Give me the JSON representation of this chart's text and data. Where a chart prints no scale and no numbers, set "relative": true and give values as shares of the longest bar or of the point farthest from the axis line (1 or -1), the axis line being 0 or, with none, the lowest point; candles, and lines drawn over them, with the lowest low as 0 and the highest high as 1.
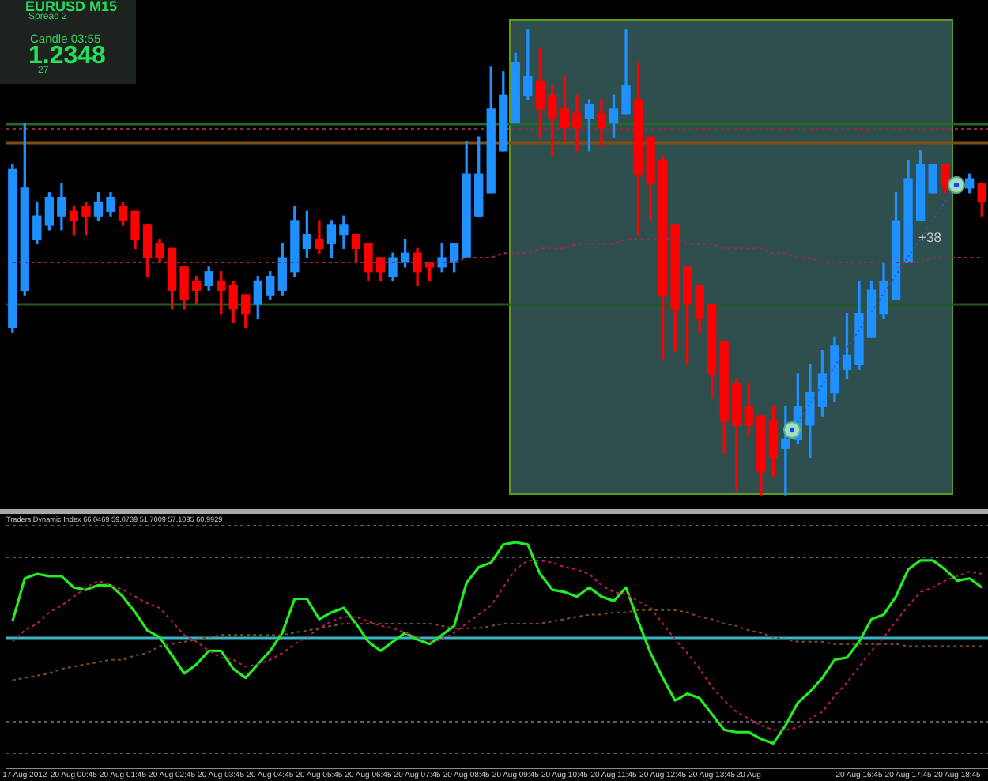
{
  "chart_data": [
    {
      "type": "candlestick",
      "title": "EURUSD M15",
      "annotations": [
        "Spread 2",
        "Candle 03:55",
        "1.2348",
        "27",
        "+38"
      ],
      "relative": true,
      "tick_labels": false,
      "categories": [
        null,
        "17 Aug 2012",
        null,
        null,
        null,
        "20 Aug 00:45",
        null,
        null,
        null,
        "20 Aug 01:45",
        null,
        null,
        null,
        "20 Aug 02:45",
        null,
        null,
        null,
        "20 Aug 03:45",
        null,
        null,
        null,
        "20 Aug 04:45",
        null,
        null,
        null,
        "20 Aug 05:45",
        null,
        null,
        null,
        "20 Aug 06:45",
        null,
        null,
        null,
        "20 Aug 07:45",
        null,
        null,
        null,
        "20 Aug 08:45",
        null,
        null,
        null,
        "20 Aug 09:45",
        null,
        null,
        null,
        "20 Aug 10:45",
        null,
        null,
        null,
        "20 Aug 11:45",
        null,
        null,
        null,
        "20 Aug 12:45",
        null,
        null,
        null,
        "20 Aug 13:45",
        null,
        null,
        "20 Aug",
        null,
        null,
        null,
        null,
        null,
        null,
        null,
        null,
        "20 Aug 16:45",
        null,
        null,
        null,
        "20 Aug 17:45",
        null,
        null,
        null,
        "20 Aug 18:45",
        null,
        null
      ],
      "ohlc": [
        [
          0.36,
          0.71,
          0.35,
          0.7
        ],
        [
          0.44,
          0.8,
          0.43,
          0.66
        ],
        [
          0.55,
          0.63,
          0.54,
          0.6
        ],
        [
          0.58,
          0.65,
          0.57,
          0.64
        ],
        [
          0.6,
          0.67,
          0.57,
          0.64
        ],
        [
          0.61,
          0.62,
          0.56,
          0.59
        ],
        [
          0.62,
          0.63,
          0.56,
          0.6
        ],
        [
          0.6,
          0.65,
          0.59,
          0.63
        ],
        [
          0.61,
          0.65,
          0.6,
          0.64
        ],
        [
          0.62,
          0.63,
          0.58,
          0.59
        ],
        [
          0.61,
          0.61,
          0.53,
          0.55
        ],
        [
          0.58,
          0.58,
          0.47,
          0.51
        ],
        [
          0.54,
          0.55,
          0.5,
          0.51
        ],
        [
          0.53,
          0.53,
          0.4,
          0.44
        ],
        [
          0.49,
          0.49,
          0.4,
          0.42
        ],
        [
          0.46,
          0.47,
          0.41,
          0.44
        ],
        [
          0.45,
          0.49,
          0.44,
          0.48
        ],
        [
          0.46,
          0.48,
          0.39,
          0.44
        ],
        [
          0.45,
          0.46,
          0.37,
          0.4
        ],
        [
          0.43,
          0.43,
          0.36,
          0.39
        ],
        [
          0.41,
          0.47,
          0.38,
          0.46
        ],
        [
          0.43,
          0.48,
          0.42,
          0.47
        ],
        [
          0.44,
          0.54,
          0.43,
          0.51
        ],
        [
          0.48,
          0.62,
          0.47,
          0.59
        ],
        [
          0.53,
          0.61,
          0.51,
          0.56
        ],
        [
          0.55,
          0.59,
          0.52,
          0.53
        ],
        [
          0.54,
          0.59,
          0.51,
          0.58
        ],
        [
          0.56,
          0.6,
          0.53,
          0.58
        ],
        [
          0.56,
          0.56,
          0.5,
          0.53
        ],
        [
          0.54,
          0.54,
          0.46,
          0.48
        ],
        [
          0.51,
          0.51,
          0.46,
          0.48
        ],
        [
          0.47,
          0.52,
          0.46,
          0.51
        ],
        [
          0.5,
          0.55,
          0.49,
          0.52
        ],
        [
          0.52,
          0.53,
          0.45,
          0.48
        ],
        [
          0.5,
          0.5,
          0.46,
          0.49
        ],
        [
          0.49,
          0.54,
          0.48,
          0.51
        ],
        [
          0.5,
          0.54,
          0.48,
          0.54
        ],
        [
          0.51,
          0.76,
          0.51,
          0.69
        ],
        [
          0.6,
          0.77,
          0.6,
          0.69
        ],
        [
          0.65,
          0.92,
          0.65,
          0.83
        ],
        [
          0.74,
          0.91,
          0.74,
          0.86
        ],
        [
          0.8,
          0.95,
          0.8,
          0.93
        ],
        [
          0.86,
          1,
          0.85,
          0.9
        ],
        [
          0.89,
          0.96,
          0.77,
          0.83
        ],
        [
          0.86,
          0.88,
          0.73,
          0.81
        ],
        [
          0.83,
          0.9,
          0.76,
          0.79
        ],
        [
          0.82,
          0.86,
          0.74,
          0.79
        ],
        [
          0.81,
          0.85,
          0.74,
          0.84
        ],
        [
          0.82,
          0.85,
          0.75,
          0.79
        ],
        [
          0.8,
          0.86,
          0.77,
          0.83
        ],
        [
          0.82,
          1,
          0.82,
          0.88
        ],
        [
          0.85,
          0.93,
          0.56,
          0.69
        ],
        [
          0.77,
          0.77,
          0.59,
          0.67
        ],
        [
          0.72,
          0.73,
          0.29,
          0.43
        ],
        [
          0.58,
          0.58,
          0.31,
          0.4
        ],
        [
          0.49,
          0.49,
          0.28,
          0.41
        ],
        [
          0.45,
          0.45,
          0.35,
          0.38
        ],
        [
          0.41,
          0.41,
          0.21,
          0.26
        ],
        [
          0.33,
          0.33,
          0.09,
          0.16
        ],
        [
          0.24,
          0.25,
          0.01,
          0.15
        ],
        [
          0.19,
          0.24,
          0.13,
          0.15
        ],
        [
          0.17,
          0.17,
          0,
          0.05
        ],
        [
          0.16,
          0.19,
          0.04,
          0.08
        ],
        [
          0.1,
          0.19,
          0,
          0.12
        ],
        [
          0.12,
          0.26,
          0.11,
          0.19
        ],
        [
          0.15,
          0.28,
          0.08,
          0.22
        ],
        [
          0.19,
          0.31,
          0.17,
          0.26
        ],
        [
          0.22,
          0.34,
          0.2,
          0.32
        ],
        [
          0.27,
          0.39,
          0.25,
          0.3
        ],
        [
          0.28,
          0.46,
          0.27,
          0.39
        ],
        [
          0.34,
          0.46,
          0.34,
          0.44
        ],
        [
          0.39,
          0.5,
          0.38,
          0.46
        ],
        [
          0.42,
          0.65,
          0.42,
          0.59
        ],
        [
          0.5,
          0.72,
          0.5,
          0.68
        ],
        [
          0.59,
          0.74,
          0.59,
          0.71
        ],
        [
          0.65,
          0.71,
          0.65,
          0.71
        ],
        [
          0.71,
          0.71,
          0.65,
          0.66
        ],
        null,
        [
          0.66,
          0.69,
          0.65,
          0.68
        ],
        [
          0.67,
          0.67,
          0.6,
          0.63
        ]
      ],
      "colors": [
        "#1e90ff",
        "#1e90ff",
        "#1e90ff",
        "#1e90ff",
        "#1e90ff",
        "#ff0000",
        "#ff0000",
        "#1e90ff",
        "#1e90ff",
        "#ff0000",
        "#ff0000",
        "#ff0000",
        "#ff0000",
        "#ff0000",
        "#ff0000",
        "#ff0000",
        "#1e90ff",
        "#ff0000",
        "#ff0000",
        "#ff0000",
        "#1e90ff",
        "#1e90ff",
        "#1e90ff",
        "#1e90ff",
        "#1e90ff",
        "#ff0000",
        "#1e90ff",
        "#1e90ff",
        "#ff0000",
        "#ff0000",
        "#ff0000",
        "#1e90ff",
        "#1e90ff",
        "#ff0000",
        "#ff0000",
        "#1e90ff",
        "#1e90ff",
        "#1e90ff",
        "#1e90ff",
        "#1e90ff",
        "#1e90ff",
        "#1e90ff",
        "#1e90ff",
        "#ff0000",
        "#ff0000",
        "#ff0000",
        "#ff0000",
        "#1e90ff",
        "#ff0000",
        "#1e90ff",
        "#1e90ff",
        "#ff0000",
        "#ff0000",
        "#ff0000",
        "#ff0000",
        "#ff0000",
        "#ff0000",
        "#ff0000",
        "#ff0000",
        "#ff0000",
        "#ff0000",
        "#ff0000",
        "#ff0000",
        "#1e90ff",
        "#1e90ff",
        "#1e90ff",
        "#1e90ff",
        "#1e90ff",
        "#1e90ff",
        "#1e90ff",
        "#1e90ff",
        "#1e90ff",
        "#1e90ff",
        "#1e90ff",
        "#1e90ff",
        "#1e90ff",
        "#ff0000",
        "#1e90ff",
        "#1e90ff",
        "#ff0000"
      ],
      "series": [
        {
          "type": "line",
          "color": "#a3244e",
          "line_style": "dotted",
          "values": [
            0.5,
            0.5,
            0.5,
            0.5,
            0.5,
            0.5,
            0.5,
            0.5,
            0.5,
            0.5,
            0.5,
            0.5,
            0.5,
            0.5,
            0.5,
            0.5,
            0.5,
            0.5,
            0.5,
            0.5,
            0.5,
            0.5,
            0.5,
            0.5,
            0.5,
            0.5,
            0.5,
            0.5,
            0.5,
            0.5,
            0.5,
            0.5,
            0.5,
            0.5,
            0.5,
            0.5,
            0.5,
            0.51,
            0.51,
            0.51,
            0.52,
            0.52,
            0.52,
            0.53,
            0.53,
            0.53,
            0.54,
            0.54,
            0.54,
            0.54,
            0.55,
            0.55,
            0.55,
            0.55,
            0.55,
            0.54,
            0.54,
            0.54,
            0.53,
            0.53,
            0.53,
            0.53,
            0.52,
            0.52,
            0.51,
            0.51,
            0.5,
            0.5,
            0.5,
            0.5,
            0.5,
            0.5,
            0.5,
            0.5,
            0.5,
            0.51,
            0.51,
            0.51,
            0.51,
            0.51
          ]
        }
      ],
      "ref_lines": [
        {
          "axis": "y",
          "value": 0.8,
          "color": "#236b23",
          "line_style": "solid"
        },
        {
          "axis": "y",
          "value": 0.79,
          "color": "#8a2a48",
          "line_style": "dotted"
        },
        {
          "axis": "y",
          "value": 0.76,
          "color": "#7d4f16",
          "line_style": "solid"
        },
        {
          "axis": "y",
          "value": 0.41,
          "color": "#1f5a1f",
          "line_style": "solid"
        }
      ],
      "bands": [
        {
          "axis": "x",
          "from": "20 Aug 09:45",
          "to": "20 Aug 18:45",
          "color": "#2f4f4f"
        }
      ]
    },
    {
      "type": "line",
      "title": "Traders Dynamic Index 66.0469 59.0739 51.7009 57.1095 60.9929",
      "relative": true,
      "tick_labels": "x",
      "categories": [
        null,
        "17 Aug 2012",
        null,
        null,
        null,
        "20 Aug 00:45",
        null,
        null,
        null,
        "20 Aug 01:45",
        null,
        null,
        null,
        "20 Aug 02:45",
        null,
        null,
        null,
        "20 Aug 03:45",
        null,
        null,
        null,
        "20 Aug 04:45",
        null,
        null,
        null,
        "20 Aug 05:45",
        null,
        null,
        null,
        "20 Aug 06:45",
        null,
        null,
        null,
        "20 Aug 07:45",
        null,
        null,
        null,
        "20 Aug 08:45",
        null,
        null,
        null,
        "20 Aug 09:45",
        null,
        null,
        null,
        "20 Aug 10:45",
        null,
        null,
        null,
        "20 Aug 11:45",
        null,
        null,
        null,
        "20 Aug 12:45",
        null,
        null,
        null,
        "20 Aug 13:45",
        null,
        null,
        "20 Aug",
        null,
        null,
        null,
        null,
        null,
        null,
        null,
        null,
        "20 Aug 16:45",
        null,
        null,
        null,
        "20 Aug 17:45",
        null,
        null,
        null,
        "20 Aug 18:45",
        null,
        null
      ],
      "series": [
        {
          "color": "#7a5020",
          "line_style": "dotted",
          "values": [
            0.39,
            0.4,
            0.41,
            0.42,
            0.44,
            0.45,
            0.46,
            0.47,
            0.48,
            0.48,
            0.5,
            0.51,
            0.54,
            0.55,
            0.56,
            0.57,
            0.58,
            0.59,
            0.59,
            0.59,
            0.59,
            0.59,
            0.59,
            0.6,
            0.61,
            0.62,
            0.63,
            0.64,
            0.64,
            0.64,
            0.64,
            0.64,
            0.64,
            0.64,
            0.64,
            0.63,
            0.62,
            0.62,
            0.62,
            0.63,
            0.64,
            0.64,
            0.64,
            0.64,
            0.65,
            0.66,
            0.67,
            0.68,
            0.68,
            0.69,
            0.69,
            0.7,
            0.7,
            0.7,
            0.7,
            0.69,
            0.67,
            0.66,
            0.64,
            0.63,
            0.61,
            0.6,
            0.58,
            0.57,
            0.56,
            0.56,
            0.56,
            0.55,
            0.55,
            0.55,
            0.55,
            0.55,
            0.55,
            0.54,
            0.54,
            0.54,
            0.54,
            0.54,
            0.54,
            0.54
          ]
        },
        {
          "color": "#b4204e",
          "line_style": "dotted",
          "values": [
            0.56,
            0.61,
            0.64,
            0.69,
            0.72,
            0.76,
            0.8,
            0.83,
            0.81,
            0.79,
            0.76,
            0.73,
            0.71,
            0.65,
            0.59,
            0.56,
            0.52,
            0.49,
            0.48,
            0.45,
            0.46,
            0.48,
            0.51,
            0.55,
            0.58,
            0.62,
            0.65,
            0.67,
            0.67,
            0.65,
            0.63,
            0.62,
            0.6,
            0.58,
            0.56,
            0.57,
            0.6,
            0.64,
            0.68,
            0.72,
            0.8,
            0.88,
            0.92,
            0.92,
            0.91,
            0.89,
            0.88,
            0.86,
            0.81,
            0.78,
            0.77,
            0.74,
            0.71,
            0.64,
            0.57,
            0.51,
            0.44,
            0.36,
            0.3,
            0.25,
            0.22,
            0.19,
            0.17,
            0.17,
            0.18,
            0.22,
            0.25,
            0.32,
            0.38,
            0.45,
            0.52,
            0.58,
            0.65,
            0.72,
            0.78,
            0.8,
            0.83,
            0.85,
            0.87,
            0.86
          ]
        },
        {
          "color": "#22ee22",
          "line_style": "solid",
          "values": [
            0.65,
            0.84,
            0.86,
            0.85,
            0.85,
            0.8,
            0.79,
            0.81,
            0.81,
            0.76,
            0.69,
            0.61,
            0.58,
            0.5,
            0.42,
            0.46,
            0.52,
            0.52,
            0.44,
            0.4,
            0.46,
            0.52,
            0.6,
            0.75,
            0.75,
            0.66,
            0.69,
            0.71,
            0.64,
            0.56,
            0.52,
            0.56,
            0.6,
            0.57,
            0.55,
            0.59,
            0.63,
            0.82,
            0.89,
            0.91,
            0.99,
            1,
            0.99,
            0.86,
            0.79,
            0.78,
            0.76,
            0.8,
            0.76,
            0.74,
            0.8,
            0.65,
            0.51,
            0.4,
            0.3,
            0.33,
            0.31,
            0.24,
            0.17,
            0.16,
            0.16,
            0.13,
            0.11,
            0.19,
            0.29,
            0.34,
            0.4,
            0.48,
            0.49,
            0.56,
            0.66,
            0.68,
            0.76,
            0.88,
            0.92,
            0.92,
            0.88,
            0.83,
            0.84,
            0.8
          ]
        }
      ],
      "ref_lines": [
        {
          "axis": "y",
          "value": 1.08,
          "color": "#5c5c5c",
          "line_style": "dotted"
        },
        {
          "axis": "y",
          "value": 0.94,
          "color": "#5c5c5c",
          "line_style": "dotted"
        },
        {
          "axis": "y",
          "value": 0.58,
          "color": "#3cb4c4",
          "line_style": "solid"
        },
        {
          "axis": "y",
          "value": 0.21,
          "color": "#5c5c5c",
          "line_style": "dotted"
        },
        {
          "axis": "y",
          "value": 0.07,
          "color": "#5c5c5c",
          "line_style": "dotted"
        }
      ]
    }
  ]
}
